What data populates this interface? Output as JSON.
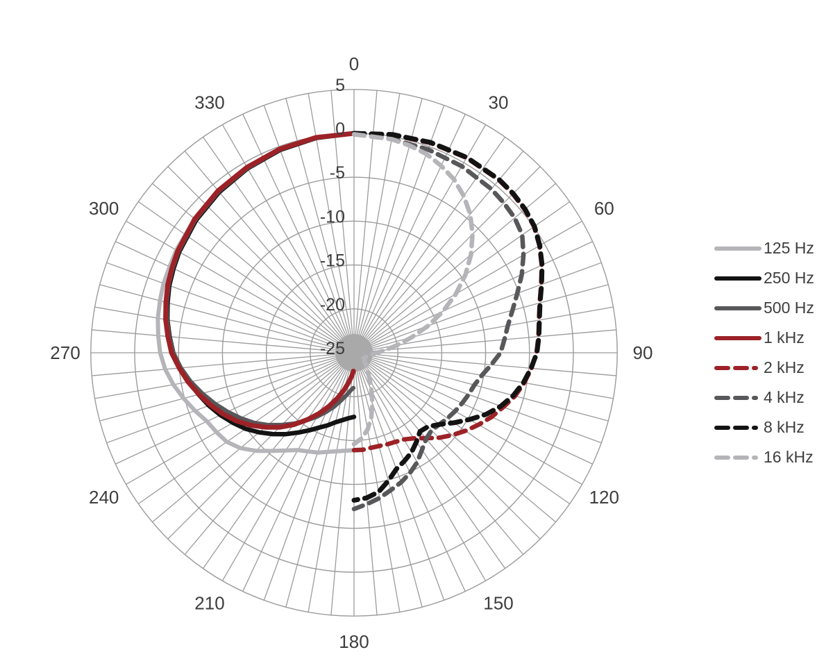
{
  "chart_data": {
    "type": "line",
    "projection": "polar",
    "title": "",
    "units": "dB",
    "angle_labels": [
      "0",
      "30",
      "60",
      "90",
      "120",
      "150",
      "180",
      "210",
      "240",
      "270",
      "300",
      "330"
    ],
    "radial_tick_labels": [
      "5",
      "0",
      "-5",
      "-10",
      "-15",
      "-20",
      "-25"
    ],
    "radial_ticks_db": [
      5,
      0,
      -5,
      -10,
      -15,
      -20,
      -25
    ],
    "radial_range_db": [
      -25,
      5
    ],
    "angular_gridline_step_deg": 5,
    "radial_gridline_step_db": 5,
    "grid_color": "#9b9b9b",
    "center_disk_color": "#a9a9a9",
    "label_color": "#3d3d3d",
    "legend_position": "right",
    "series": [
      {
        "name": "125 Hz",
        "color": "#b5b5b9",
        "style": "solid",
        "width": 6,
        "points": [
          [
            180,
            -13.9
          ],
          [
            185,
            -13.8
          ],
          [
            190,
            -13.6
          ],
          [
            195,
            -13.3
          ],
          [
            200,
            -12.9
          ],
          [
            205,
            -12.6
          ],
          [
            210,
            -12.2
          ],
          [
            215,
            -11.4
          ],
          [
            220,
            -10.4
          ],
          [
            225,
            -9.2
          ],
          [
            230,
            -8.1
          ],
          [
            235,
            -7.3
          ],
          [
            240,
            -6.9
          ],
          [
            245,
            -6.5
          ],
          [
            250,
            -5.7
          ],
          [
            255,
            -4.9
          ],
          [
            260,
            -4.1
          ],
          [
            265,
            -3.4
          ],
          [
            270,
            -2.9
          ],
          [
            275,
            -2.6
          ],
          [
            280,
            -2.3
          ],
          [
            285,
            -2.1
          ],
          [
            290,
            -1.9
          ],
          [
            295,
            -1.8
          ],
          [
            300,
            -1.6
          ],
          [
            310,
            -1.3
          ],
          [
            320,
            -1.0
          ],
          [
            330,
            -0.7
          ],
          [
            340,
            -0.4
          ],
          [
            350,
            -0.15
          ],
          [
            360,
            0
          ]
        ]
      },
      {
        "name": "250 Hz",
        "color": "#131313",
        "style": "solid",
        "width": 6.5,
        "points": [
          [
            180,
            -17.7
          ],
          [
            185,
            -17.5
          ],
          [
            190,
            -17.2
          ],
          [
            195,
            -16.8
          ],
          [
            200,
            -16.2
          ],
          [
            205,
            -15.6
          ],
          [
            210,
            -14.8
          ],
          [
            215,
            -13.9
          ],
          [
            220,
            -12.9
          ],
          [
            225,
            -11.9
          ],
          [
            230,
            -10.9
          ],
          [
            235,
            -9.9
          ],
          [
            240,
            -9.05
          ],
          [
            245,
            -8.2
          ],
          [
            250,
            -7.4
          ],
          [
            255,
            -6.65
          ],
          [
            260,
            -5.9
          ],
          [
            265,
            -5.15
          ],
          [
            270,
            -4.4
          ],
          [
            275,
            -3.9
          ],
          [
            280,
            -3.4
          ],
          [
            285,
            -3.0
          ],
          [
            290,
            -2.6
          ],
          [
            295,
            -2.3
          ],
          [
            300,
            -2.0
          ],
          [
            310,
            -1.5
          ],
          [
            320,
            -1.1
          ],
          [
            330,
            -0.75
          ],
          [
            340,
            -0.4
          ],
          [
            350,
            -0.15
          ],
          [
            360,
            0
          ]
        ]
      },
      {
        "name": "500 Hz",
        "color": "#58575a",
        "style": "solid",
        "width": 6,
        "points": [
          [
            181,
            -21.0
          ],
          [
            185,
            -20.7
          ],
          [
            190,
            -20.1
          ],
          [
            195,
            -19.4
          ],
          [
            200,
            -18.5
          ],
          [
            205,
            -17.6
          ],
          [
            210,
            -16.6
          ],
          [
            215,
            -15.6
          ],
          [
            220,
            -14.5
          ],
          [
            225,
            -13.4
          ],
          [
            230,
            -12.2
          ],
          [
            235,
            -11.1
          ],
          [
            240,
            -10.1
          ],
          [
            245,
            -9.1
          ],
          [
            250,
            -8.1
          ],
          [
            255,
            -7.1
          ],
          [
            260,
            -6.1
          ],
          [
            265,
            -5.2
          ],
          [
            270,
            -4.4
          ],
          [
            275,
            -3.85
          ],
          [
            280,
            -3.35
          ],
          [
            285,
            -2.9
          ],
          [
            290,
            -2.5
          ],
          [
            295,
            -2.2
          ],
          [
            300,
            -1.9
          ],
          [
            310,
            -1.4
          ],
          [
            320,
            -1.0
          ],
          [
            330,
            -0.7
          ],
          [
            340,
            -0.35
          ],
          [
            350,
            -0.12
          ],
          [
            360,
            0
          ]
        ]
      },
      {
        "name": "1 kHz",
        "color": "#9c2227",
        "style": "solid",
        "width": 7,
        "points": [
          [
            182,
            -22.9
          ],
          [
            185,
            -22.4
          ],
          [
            190,
            -21.6
          ],
          [
            195,
            -20.6
          ],
          [
            200,
            -19.5
          ],
          [
            205,
            -18.3
          ],
          [
            210,
            -17.0
          ],
          [
            215,
            -15.7
          ],
          [
            220,
            -14.3
          ],
          [
            225,
            -13.0
          ],
          [
            230,
            -11.8
          ],
          [
            235,
            -10.6
          ],
          [
            240,
            -9.5
          ],
          [
            245,
            -8.5
          ],
          [
            250,
            -7.6
          ],
          [
            255,
            -6.7
          ],
          [
            260,
            -5.8
          ],
          [
            265,
            -5.0
          ],
          [
            270,
            -4.2
          ],
          [
            275,
            -3.7
          ],
          [
            280,
            -3.2
          ],
          [
            285,
            -2.8
          ],
          [
            290,
            -2.4
          ],
          [
            295,
            -2.1
          ],
          [
            300,
            -1.8
          ],
          [
            310,
            -1.3
          ],
          [
            320,
            -0.9
          ],
          [
            330,
            -0.6
          ],
          [
            340,
            -0.3
          ],
          [
            350,
            -0.1
          ],
          [
            360,
            0
          ]
        ]
      },
      {
        "name": "2 kHz",
        "color": "#9c2227",
        "style": "dashed",
        "width": 6.5,
        "points": [
          [
            0,
            0
          ],
          [
            10,
            0.2
          ],
          [
            20,
            0.45
          ],
          [
            30,
            0.65
          ],
          [
            40,
            0.7
          ],
          [
            45,
            0.6
          ],
          [
            50,
            0.4
          ],
          [
            55,
            0.05
          ],
          [
            60,
            -0.6
          ],
          [
            65,
            -1.4
          ],
          [
            70,
            -2.3
          ],
          [
            75,
            -3.1
          ],
          [
            80,
            -3.6
          ],
          [
            85,
            -3.9
          ],
          [
            90,
            -4.2
          ],
          [
            95,
            -4.7
          ],
          [
            100,
            -5.3
          ],
          [
            105,
            -6.0
          ],
          [
            110,
            -6.9
          ],
          [
            115,
            -7.7
          ],
          [
            120,
            -8.6
          ],
          [
            125,
            -9.5
          ],
          [
            130,
            -10.4
          ],
          [
            135,
            -11.3
          ],
          [
            140,
            -12.3
          ],
          [
            145,
            -13.1
          ],
          [
            150,
            -13.6
          ],
          [
            155,
            -13.8
          ],
          [
            160,
            -13.9
          ],
          [
            165,
            -14.0
          ],
          [
            170,
            -14.0
          ],
          [
            175,
            -13.9
          ],
          [
            180,
            -13.9
          ]
        ]
      },
      {
        "name": "4 kHz",
        "color": "#58575a",
        "style": "dashed",
        "width": 6.5,
        "points": [
          [
            0,
            -0.1
          ],
          [
            10,
            -0.25
          ],
          [
            20,
            -0.35
          ],
          [
            30,
            -0.45
          ],
          [
            40,
            -0.65
          ],
          [
            45,
            -0.85
          ],
          [
            50,
            -1.1
          ],
          [
            55,
            -1.6
          ],
          [
            60,
            -2.7
          ],
          [
            65,
            -3.9
          ],
          [
            70,
            -5.2
          ],
          [
            75,
            -6.3
          ],
          [
            80,
            -7.2
          ],
          [
            85,
            -7.8
          ],
          [
            90,
            -8.3
          ],
          [
            95,
            -9.3
          ],
          [
            100,
            -10.2
          ],
          [
            105,
            -10.8
          ],
          [
            110,
            -11.1
          ],
          [
            115,
            -11.4
          ],
          [
            120,
            -11.7
          ],
          [
            125,
            -12.0
          ],
          [
            130,
            -12.3
          ],
          [
            135,
            -12.5
          ],
          [
            140,
            -12.2
          ],
          [
            145,
            -11.5
          ],
          [
            150,
            -10.6
          ],
          [
            155,
            -9.9
          ],
          [
            160,
            -9.3
          ],
          [
            165,
            -8.8
          ],
          [
            170,
            -8.2
          ],
          [
            175,
            -7.7
          ],
          [
            180,
            -7.2
          ]
        ]
      },
      {
        "name": "8 kHz",
        "color": "#131313",
        "style": "dashed",
        "width": 7,
        "points": [
          [
            0,
            0
          ],
          [
            10,
            0.25
          ],
          [
            20,
            0.5
          ],
          [
            30,
            0.7
          ],
          [
            40,
            0.75
          ],
          [
            45,
            0.65
          ],
          [
            50,
            0.45
          ],
          [
            55,
            0.1
          ],
          [
            60,
            -0.55
          ],
          [
            65,
            -1.35
          ],
          [
            70,
            -2.25
          ],
          [
            75,
            -3.05
          ],
          [
            80,
            -3.55
          ],
          [
            85,
            -3.85
          ],
          [
            90,
            -4.15
          ],
          [
            95,
            -4.75
          ],
          [
            100,
            -5.4
          ],
          [
            105,
            -6.2
          ],
          [
            110,
            -7.2
          ],
          [
            115,
            -8.4
          ],
          [
            120,
            -9.8
          ],
          [
            125,
            -11.1
          ],
          [
            130,
            -12.3
          ],
          [
            135,
            -13.1
          ],
          [
            140,
            -13.3
          ],
          [
            145,
            -12.6
          ],
          [
            150,
            -11.9
          ],
          [
            155,
            -11.4
          ],
          [
            160,
            -10.9
          ],
          [
            165,
            -9.9
          ],
          [
            170,
            -8.9
          ],
          [
            175,
            -8.4
          ],
          [
            180,
            -8.2
          ]
        ]
      },
      {
        "name": "16 kHz",
        "color": "#b5b5b9",
        "style": "dashed",
        "width": 6.5,
        "points": [
          [
            0,
            -0.1
          ],
          [
            10,
            -0.3
          ],
          [
            15,
            -0.55
          ],
          [
            20,
            -0.9
          ],
          [
            25,
            -1.5
          ],
          [
            30,
            -2.2
          ],
          [
            35,
            -3.2
          ],
          [
            40,
            -4.4
          ],
          [
            45,
            -5.9
          ],
          [
            50,
            -7.6
          ],
          [
            55,
            -9.5
          ],
          [
            60,
            -11.6
          ],
          [
            65,
            -13.8
          ],
          [
            70,
            -16.0
          ],
          [
            75,
            -18.2
          ],
          [
            80,
            -20.0
          ],
          [
            85,
            -21.4
          ],
          [
            90,
            -22.4
          ],
          [
            95,
            -23.0
          ],
          [
            100,
            -23.3
          ],
          [
            110,
            -23.6
          ],
          [
            120,
            -23.7
          ],
          [
            130,
            -23.4
          ],
          [
            135,
            -23.1
          ],
          [
            140,
            -22.7
          ],
          [
            145,
            -22.2
          ],
          [
            150,
            -21.4
          ],
          [
            155,
            -20.3
          ],
          [
            160,
            -18.9
          ],
          [
            165,
            -17.4
          ],
          [
            170,
            -16.1
          ],
          [
            175,
            -15.2
          ],
          [
            180,
            -14.6
          ]
        ]
      }
    ],
    "legend_entries": [
      "125 Hz",
      "250 Hz",
      "500 Hz",
      "1 kHz",
      "2 kHz",
      "4 kHz",
      "8 kHz",
      "16 kHz"
    ]
  }
}
